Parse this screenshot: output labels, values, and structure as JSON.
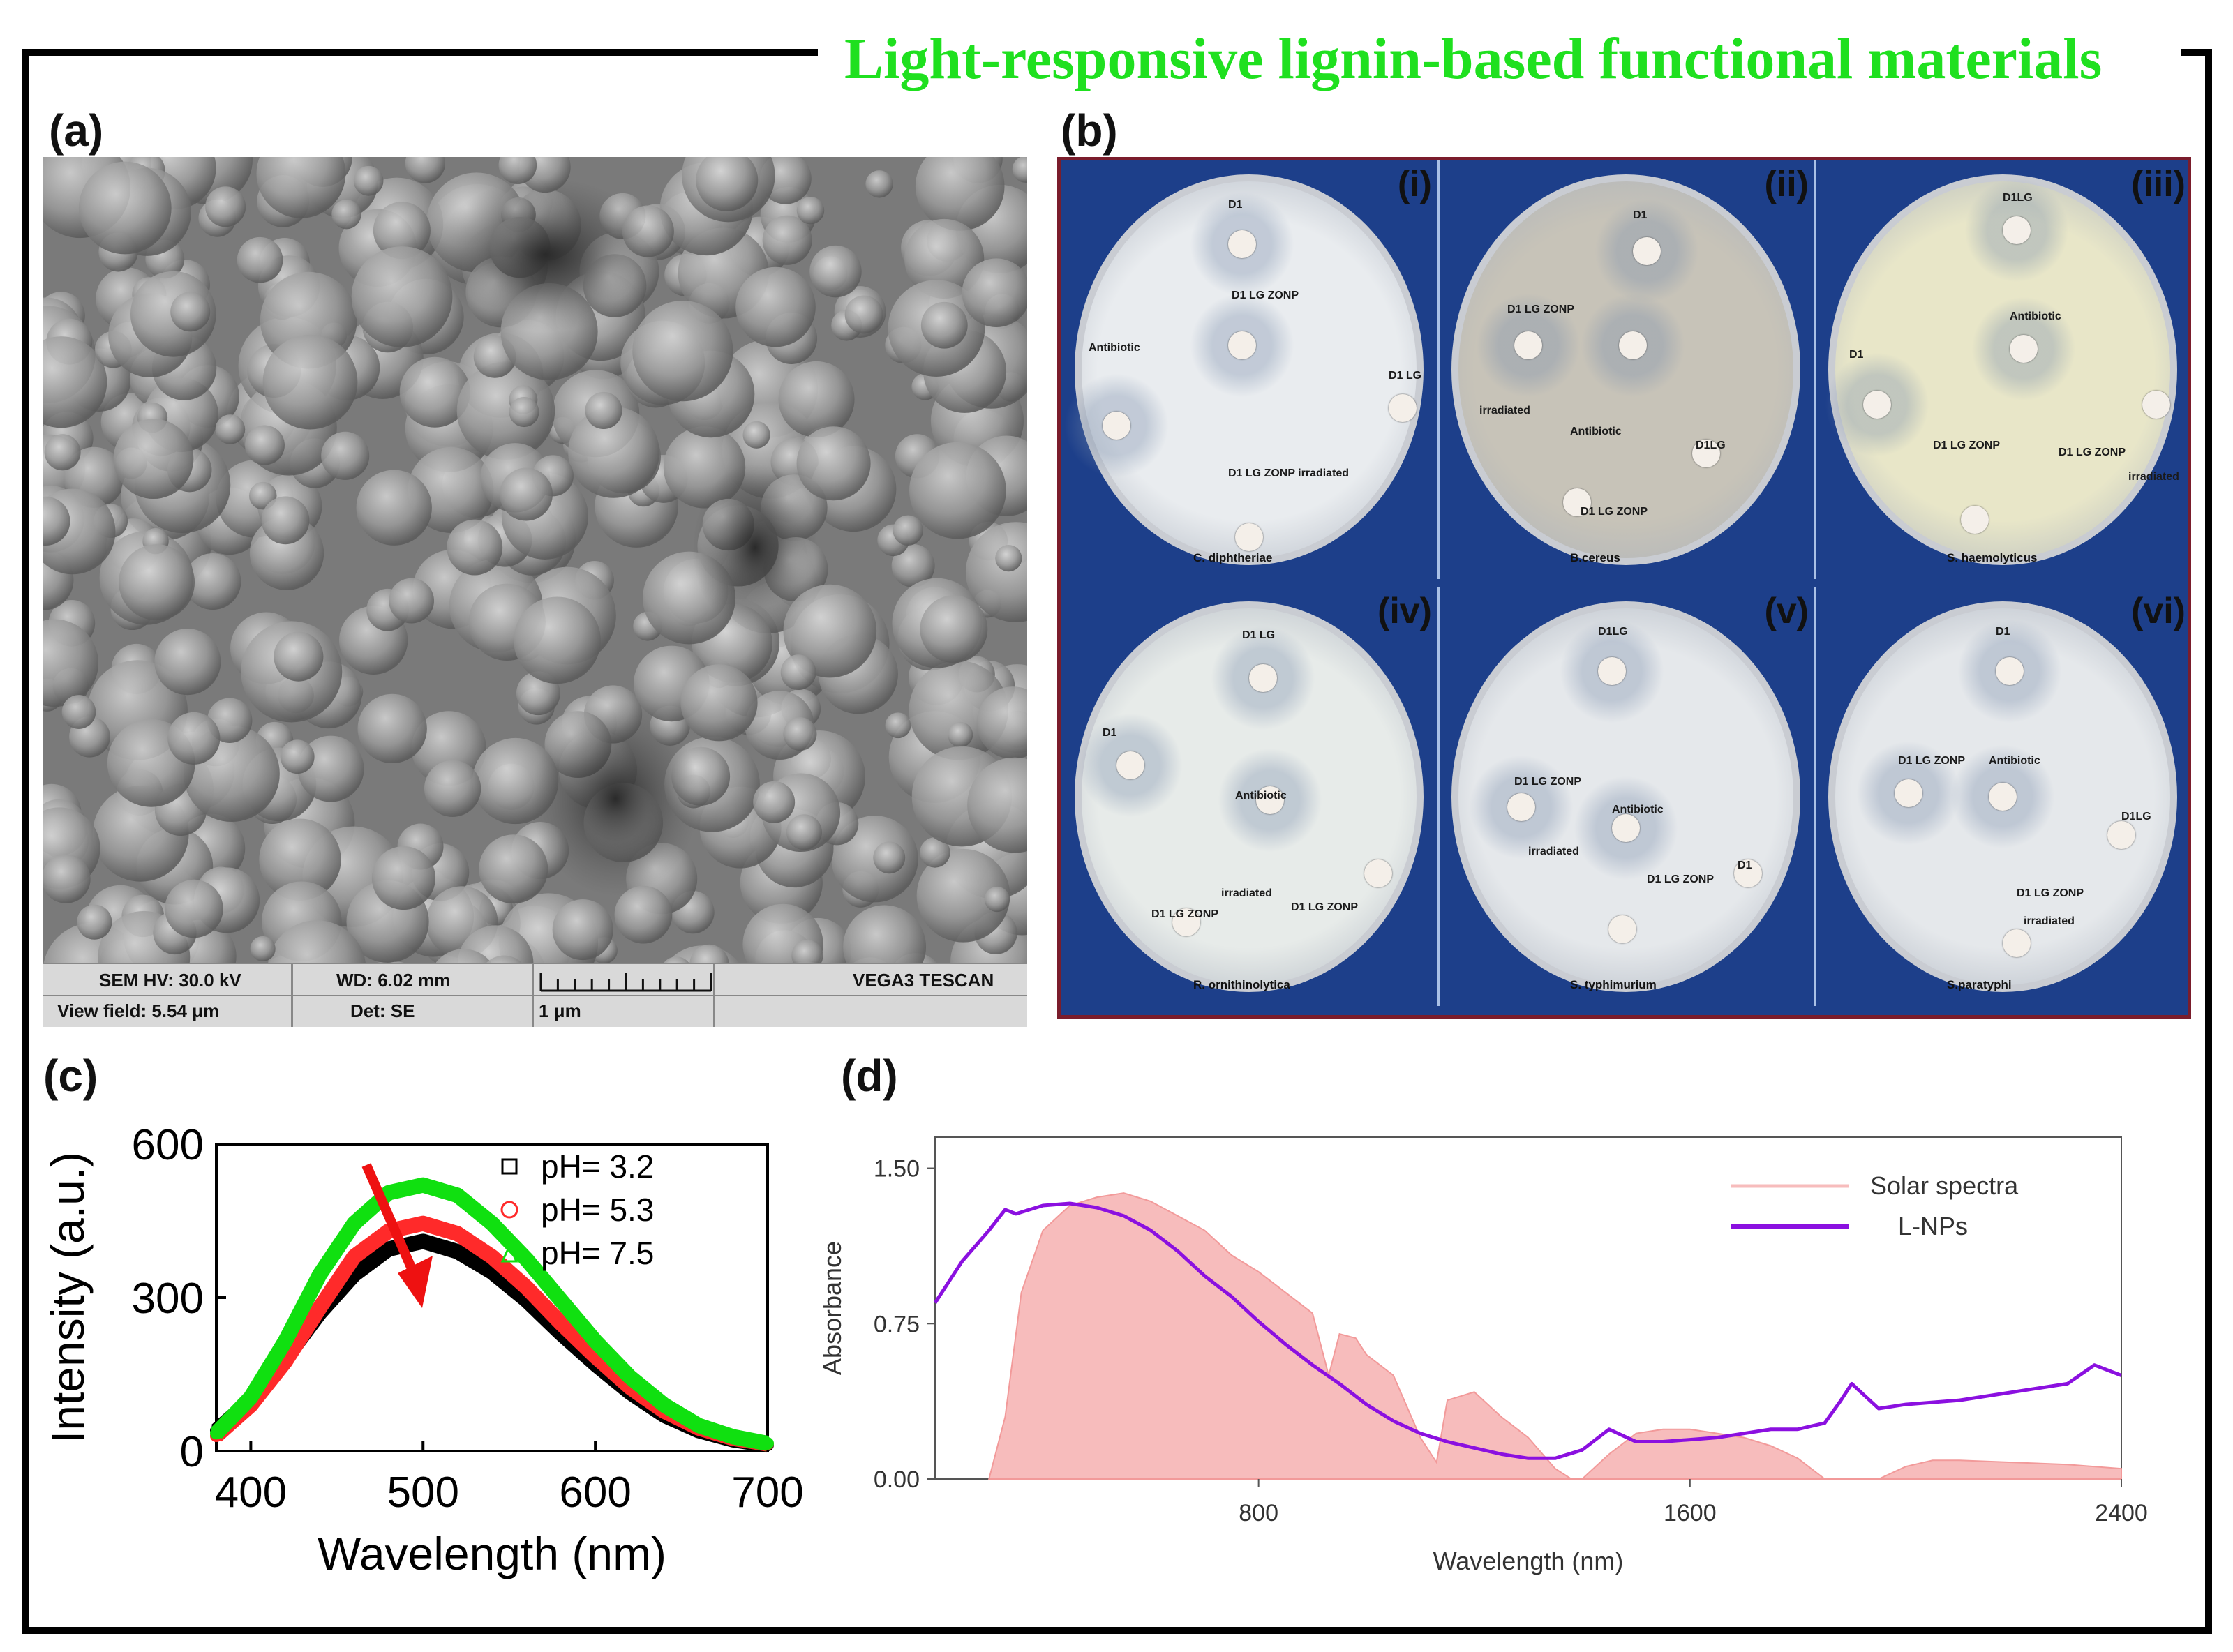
{
  "title": "Light-responsive lignin-based functional materials",
  "panels": {
    "a": "(a)",
    "b": "(b)",
    "c": "(c)",
    "d": "(d)"
  },
  "sem": {
    "hv": "SEM HV: 30.0 kV",
    "wd": "WD: 6.02 mm",
    "brand": "VEGA3 TESCAN",
    "view_field": "View field: 5.54 μm",
    "det": "Det: SE",
    "scale": "1 μm"
  },
  "plates": [
    {
      "id": "(i)",
      "organism": "C. diphtheriae",
      "labels": [
        "D1",
        "D1 LG ZONP",
        "Antibiotic",
        "D1 LG",
        "D1 LG ZONP irradiated"
      ]
    },
    {
      "id": "(ii)",
      "organism": "B.cereus",
      "labels": [
        "D1",
        "D1 LG ZONP",
        "irradiated",
        "Antibiotic",
        "D1LG",
        "D1 LG ZONP"
      ]
    },
    {
      "id": "(iii)",
      "organism": "S. haemolyticus",
      "labels": [
        "D1LG",
        "D1",
        "Antibiotic",
        "D1 LG ZONP",
        "D1 LG ZONP",
        "irradiated"
      ]
    },
    {
      "id": "(iv)",
      "organism": "R. ornithinolytica",
      "labels": [
        "D1 LG",
        "D1",
        "Antibiotic",
        "D1 LG ZONP",
        "D1 LG ZONP",
        "irradiated"
      ]
    },
    {
      "id": "(v)",
      "organism": "S. typhimurium",
      "labels": [
        "D1LG",
        "D1 LG ZONP",
        "irradiated",
        "Antibiotic",
        "D1 LG ZONP",
        "D1"
      ]
    },
    {
      "id": "(vi)",
      "organism": "S.paratyphi",
      "labels": [
        "D1",
        "Antibiotic",
        "D1 LG ZONP",
        "D1LG",
        "D1 LG ZONP",
        "irradiated"
      ]
    }
  ],
  "chart_data": [
    {
      "type": "line",
      "panel": "(c)",
      "xlabel": "Wavelength (nm)",
      "ylabel": "Intensity (a.u.)",
      "xlim": [
        380,
        700
      ],
      "ylim": [
        0,
        600
      ],
      "xticks": [
        400,
        500,
        600,
        700
      ],
      "yticks": [
        0,
        300,
        600
      ],
      "legend_position": "top-right",
      "x": [
        380,
        400,
        420,
        440,
        460,
        480,
        500,
        520,
        540,
        560,
        580,
        600,
        620,
        640,
        660,
        680,
        700
      ],
      "series": [
        {
          "name": "pH= 3.2",
          "color": "#000000",
          "marker": "square",
          "values": [
            40,
            100,
            180,
            270,
            345,
            395,
            410,
            390,
            350,
            295,
            230,
            170,
            115,
            70,
            40,
            22,
            12
          ]
        },
        {
          "name": "pH= 5.3",
          "color": "#ff2a2a",
          "marker": "circle",
          "values": [
            30,
            90,
            175,
            280,
            380,
            430,
            445,
            425,
            380,
            320,
            250,
            185,
            125,
            78,
            45,
            25,
            14
          ]
        },
        {
          "name": "pH= 7.5",
          "color": "#10e010",
          "marker": "triangle",
          "values": [
            35,
            105,
            215,
            345,
            445,
            505,
            520,
            500,
            445,
            375,
            295,
            215,
            145,
            90,
            50,
            28,
            15
          ]
        }
      ]
    },
    {
      "type": "area",
      "panel": "(d)",
      "xlabel": "Wavelength (nm)",
      "ylabel": "Absorbance",
      "xlim": [
        200,
        2400
      ],
      "ylim": [
        0,
        1.65
      ],
      "xticks": [
        800,
        1600,
        2400
      ],
      "yticks": [
        0.0,
        0.75,
        1.5
      ],
      "legend_position": "top-right",
      "series": [
        {
          "name": "Solar spectra",
          "color": "#f7bcbc",
          "kind": "area",
          "x": [
            300,
            330,
            360,
            400,
            450,
            500,
            550,
            600,
            650,
            700,
            750,
            800,
            850,
            900,
            930,
            950,
            980,
            1000,
            1050,
            1100,
            1130,
            1150,
            1200,
            1250,
            1300,
            1350,
            1380,
            1400,
            1450,
            1500,
            1550,
            1600,
            1650,
            1700,
            1750,
            1800,
            1850,
            1900,
            1950,
            2000,
            2050,
            2100,
            2200,
            2300,
            2400
          ],
          "values": [
            0.0,
            0.3,
            0.9,
            1.2,
            1.32,
            1.36,
            1.38,
            1.34,
            1.27,
            1.2,
            1.08,
            1.0,
            0.9,
            0.8,
            0.5,
            0.7,
            0.68,
            0.6,
            0.5,
            0.2,
            0.08,
            0.38,
            0.42,
            0.3,
            0.2,
            0.05,
            0.0,
            0.0,
            0.12,
            0.22,
            0.24,
            0.24,
            0.22,
            0.2,
            0.16,
            0.1,
            0.0,
            0.0,
            0.0,
            0.06,
            0.09,
            0.09,
            0.08,
            0.07,
            0.05
          ]
        },
        {
          "name": "L-NPs",
          "color": "#8b10e0",
          "kind": "line",
          "x": [
            200,
            250,
            300,
            330,
            350,
            400,
            450,
            500,
            550,
            600,
            650,
            700,
            750,
            800,
            850,
            900,
            950,
            1000,
            1050,
            1100,
            1150,
            1200,
            1250,
            1300,
            1350,
            1400,
            1450,
            1500,
            1550,
            1600,
            1650,
            1700,
            1750,
            1800,
            1850,
            1880,
            1900,
            1950,
            2000,
            2100,
            2200,
            2300,
            2350,
            2400
          ],
          "values": [
            0.85,
            1.05,
            1.2,
            1.3,
            1.28,
            1.32,
            1.33,
            1.31,
            1.27,
            1.2,
            1.1,
            0.98,
            0.88,
            0.76,
            0.65,
            0.55,
            0.46,
            0.36,
            0.28,
            0.22,
            0.18,
            0.15,
            0.12,
            0.1,
            0.1,
            0.14,
            0.24,
            0.18,
            0.18,
            0.19,
            0.2,
            0.22,
            0.24,
            0.24,
            0.27,
            0.38,
            0.46,
            0.34,
            0.36,
            0.38,
            0.42,
            0.46,
            0.55,
            0.5
          ]
        }
      ]
    }
  ]
}
